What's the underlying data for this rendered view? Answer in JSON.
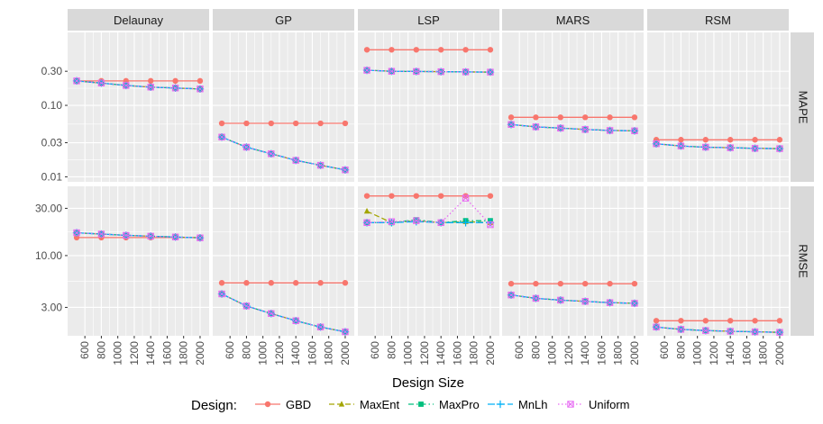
{
  "chart_data": {
    "type": "line",
    "facet_columns": [
      "Delaunay",
      "GP",
      "LSP",
      "MARS",
      "RSM"
    ],
    "facet_rows": [
      "MAPE",
      "RMSE"
    ],
    "x": [
      500,
      800,
      1100,
      1400,
      1700,
      2000
    ],
    "x_ticks": [
      "600",
      "800",
      "1000",
      "1200",
      "1400",
      "1600",
      "1800",
      "2000"
    ],
    "x_tick_values": [
      600,
      800,
      1000,
      1200,
      1400,
      1600,
      1800,
      2000
    ],
    "xlim": [
      390,
      2110
    ],
    "xlabel": "Design Size",
    "y_scale": "log",
    "rows": {
      "MAPE": {
        "ylim": [
          0.0085,
          1.05
        ],
        "y_ticks": [
          "0.01",
          "0.03",
          "0.10",
          "0.30"
        ],
        "y_tick_values": [
          0.01,
          0.03,
          0.1,
          0.3
        ]
      },
      "RMSE": {
        "ylim": [
          1.55,
          50
        ],
        "y_ticks": [
          "3.00",
          "10.00",
          "30.00"
        ],
        "y_tick_values": [
          3,
          10,
          30
        ]
      }
    },
    "legend": {
      "title": "Design:",
      "position": "bottom",
      "entries": [
        "GBD",
        "MaxEnt",
        "MaxPro",
        "MnLh",
        "Uniform"
      ]
    },
    "series_styles": {
      "GBD": {
        "color": "#F8766D",
        "dash": "",
        "marker": "circle"
      },
      "MaxEnt": {
        "color": "#A3A500",
        "dash": "6,3",
        "marker": "triangle"
      },
      "MaxPro": {
        "color": "#00BF7D",
        "dash": "6,3,1.5,3",
        "marker": "square"
      },
      "MnLh": {
        "color": "#00B0F6",
        "dash": "8,3",
        "marker": "plus"
      },
      "Uniform": {
        "color": "#E76BF3",
        "dash": "1.5,2.5",
        "marker": "boxcross"
      }
    },
    "panels": [
      {
        "col": "Delaunay",
        "row": "MAPE",
        "series": [
          {
            "name": "GBD",
            "values": [
              0.22,
              0.22,
              0.22,
              0.22,
              0.22,
              0.22
            ]
          },
          {
            "name": "MaxEnt",
            "values": [
              0.22,
              0.205,
              0.19,
              0.18,
              0.175,
              0.17
            ]
          },
          {
            "name": "MaxPro",
            "values": [
              0.22,
              0.205,
              0.19,
              0.18,
              0.175,
              0.17
            ]
          },
          {
            "name": "MnLh",
            "values": [
              0.22,
              0.205,
              0.19,
              0.18,
              0.175,
              0.17
            ]
          },
          {
            "name": "Uniform",
            "values": [
              0.22,
              0.205,
              0.19,
              0.18,
              0.175,
              0.17
            ]
          }
        ]
      },
      {
        "col": "GP",
        "row": "MAPE",
        "series": [
          {
            "name": "GBD",
            "values": [
              0.056,
              0.056,
              0.056,
              0.056,
              0.056,
              0.056
            ]
          },
          {
            "name": "MaxEnt",
            "values": [
              0.036,
              0.026,
              0.021,
              0.017,
              0.0145,
              0.0125
            ]
          },
          {
            "name": "MaxPro",
            "values": [
              0.036,
              0.026,
              0.021,
              0.017,
              0.0145,
              0.0125
            ]
          },
          {
            "name": "MnLh",
            "values": [
              0.036,
              0.026,
              0.021,
              0.017,
              0.0145,
              0.0125
            ]
          },
          {
            "name": "Uniform",
            "values": [
              0.036,
              0.026,
              0.021,
              0.017,
              0.0145,
              0.0125
            ]
          }
        ]
      },
      {
        "col": "LSP",
        "row": "MAPE",
        "series": [
          {
            "name": "GBD",
            "values": [
              0.6,
              0.6,
              0.6,
              0.6,
              0.6,
              0.6
            ]
          },
          {
            "name": "MaxEnt",
            "values": [
              0.31,
              0.3,
              0.298,
              0.296,
              0.294,
              0.292
            ]
          },
          {
            "name": "MaxPro",
            "values": [
              0.31,
              0.3,
              0.298,
              0.296,
              0.294,
              0.292
            ]
          },
          {
            "name": "MnLh",
            "values": [
              0.31,
              0.3,
              0.298,
              0.296,
              0.294,
              0.292
            ]
          },
          {
            "name": "Uniform",
            "values": [
              0.31,
              0.3,
              0.298,
              0.296,
              0.294,
              0.292
            ]
          }
        ]
      },
      {
        "col": "MARS",
        "row": "MAPE",
        "series": [
          {
            "name": "GBD",
            "values": [
              0.068,
              0.068,
              0.068,
              0.068,
              0.068,
              0.068
            ]
          },
          {
            "name": "MaxEnt",
            "values": [
              0.054,
              0.05,
              0.048,
              0.046,
              0.0445,
              0.044
            ]
          },
          {
            "name": "MaxPro",
            "values": [
              0.054,
              0.05,
              0.048,
              0.046,
              0.0445,
              0.044
            ]
          },
          {
            "name": "MnLh",
            "values": [
              0.054,
              0.05,
              0.048,
              0.046,
              0.0445,
              0.044
            ]
          },
          {
            "name": "Uniform",
            "values": [
              0.054,
              0.05,
              0.048,
              0.046,
              0.0445,
              0.044
            ]
          }
        ]
      },
      {
        "col": "RSM",
        "row": "MAPE",
        "series": [
          {
            "name": "GBD",
            "values": [
              0.033,
              0.033,
              0.033,
              0.033,
              0.033,
              0.033
            ]
          },
          {
            "name": "MaxEnt",
            "values": [
              0.029,
              0.027,
              0.026,
              0.0255,
              0.025,
              0.0248
            ]
          },
          {
            "name": "MaxPro",
            "values": [
              0.029,
              0.027,
              0.026,
              0.0255,
              0.025,
              0.0248
            ]
          },
          {
            "name": "MnLh",
            "values": [
              0.029,
              0.027,
              0.026,
              0.0255,
              0.025,
              0.0248
            ]
          },
          {
            "name": "Uniform",
            "values": [
              0.029,
              0.027,
              0.026,
              0.0255,
              0.025,
              0.0248
            ]
          }
        ]
      },
      {
        "col": "Delaunay",
        "row": "RMSE",
        "series": [
          {
            "name": "GBD",
            "values": [
              15.2,
              15.2,
              15.2,
              15.2,
              15.2,
              15.2
            ]
          },
          {
            "name": "MaxEnt",
            "values": [
              17,
              16.5,
              16,
              15.7,
              15.4,
              15.1
            ]
          },
          {
            "name": "MaxPro",
            "values": [
              17,
              16.5,
              16,
              15.7,
              15.4,
              15.1
            ]
          },
          {
            "name": "MnLh",
            "values": [
              17,
              16.5,
              16,
              15.7,
              15.4,
              15.1
            ]
          },
          {
            "name": "Uniform",
            "values": [
              17,
              16.5,
              16,
              15.7,
              15.4,
              15.1
            ]
          }
        ]
      },
      {
        "col": "GP",
        "row": "RMSE",
        "series": [
          {
            "name": "GBD",
            "values": [
              5.3,
              5.3,
              5.3,
              5.3,
              5.3,
              5.3
            ]
          },
          {
            "name": "MaxEnt",
            "values": [
              4.1,
              3.1,
              2.6,
              2.2,
              1.9,
              1.7
            ]
          },
          {
            "name": "MaxPro",
            "values": [
              4.1,
              3.1,
              2.6,
              2.2,
              1.9,
              1.7
            ]
          },
          {
            "name": "MnLh",
            "values": [
              4.1,
              3.1,
              2.6,
              2.2,
              1.9,
              1.7
            ]
          },
          {
            "name": "Uniform",
            "values": [
              4.1,
              3.1,
              2.6,
              2.2,
              1.9,
              1.7
            ]
          }
        ]
      },
      {
        "col": "LSP",
        "row": "RMSE",
        "series": [
          {
            "name": "GBD",
            "values": [
              40,
              40,
              40,
              40,
              40,
              40
            ]
          },
          {
            "name": "MaxEnt",
            "values": [
              28,
              21.5,
              22.5,
              21.5,
              22,
              21.5
            ]
          },
          {
            "name": "MaxPro",
            "values": [
              21.5,
              21.5,
              23,
              21.5,
              22.5,
              22.5
            ]
          },
          {
            "name": "MnLh",
            "values": [
              21.5,
              21.5,
              22,
              21.5,
              21.5,
              21.5
            ]
          },
          {
            "name": "Uniform",
            "values": [
              21.5,
              22,
              22.5,
              21.5,
              38,
              20.5
            ]
          }
        ]
      },
      {
        "col": "MARS",
        "row": "RMSE",
        "series": [
          {
            "name": "GBD",
            "values": [
              5.2,
              5.2,
              5.2,
              5.2,
              5.2,
              5.2
            ]
          },
          {
            "name": "MaxEnt",
            "values": [
              4.0,
              3.7,
              3.55,
              3.45,
              3.35,
              3.3
            ]
          },
          {
            "name": "MaxPro",
            "values": [
              4.0,
              3.7,
              3.55,
              3.45,
              3.35,
              3.3
            ]
          },
          {
            "name": "MnLh",
            "values": [
              4.0,
              3.7,
              3.55,
              3.45,
              3.35,
              3.3
            ]
          },
          {
            "name": "Uniform",
            "values": [
              4.0,
              3.7,
              3.55,
              3.45,
              3.35,
              3.3
            ]
          }
        ]
      },
      {
        "col": "RSM",
        "row": "RMSE",
        "series": [
          {
            "name": "GBD",
            "values": [
              2.2,
              2.2,
              2.2,
              2.2,
              2.2,
              2.2
            ]
          },
          {
            "name": "MaxEnt",
            "values": [
              1.9,
              1.8,
              1.75,
              1.72,
              1.7,
              1.68
            ]
          },
          {
            "name": "MaxPro",
            "values": [
              1.9,
              1.8,
              1.75,
              1.72,
              1.7,
              1.68
            ]
          },
          {
            "name": "MnLh",
            "values": [
              1.9,
              1.8,
              1.75,
              1.72,
              1.7,
              1.68
            ]
          },
          {
            "name": "Uniform",
            "values": [
              1.9,
              1.8,
              1.75,
              1.72,
              1.7,
              1.68
            ]
          }
        ]
      }
    ]
  }
}
